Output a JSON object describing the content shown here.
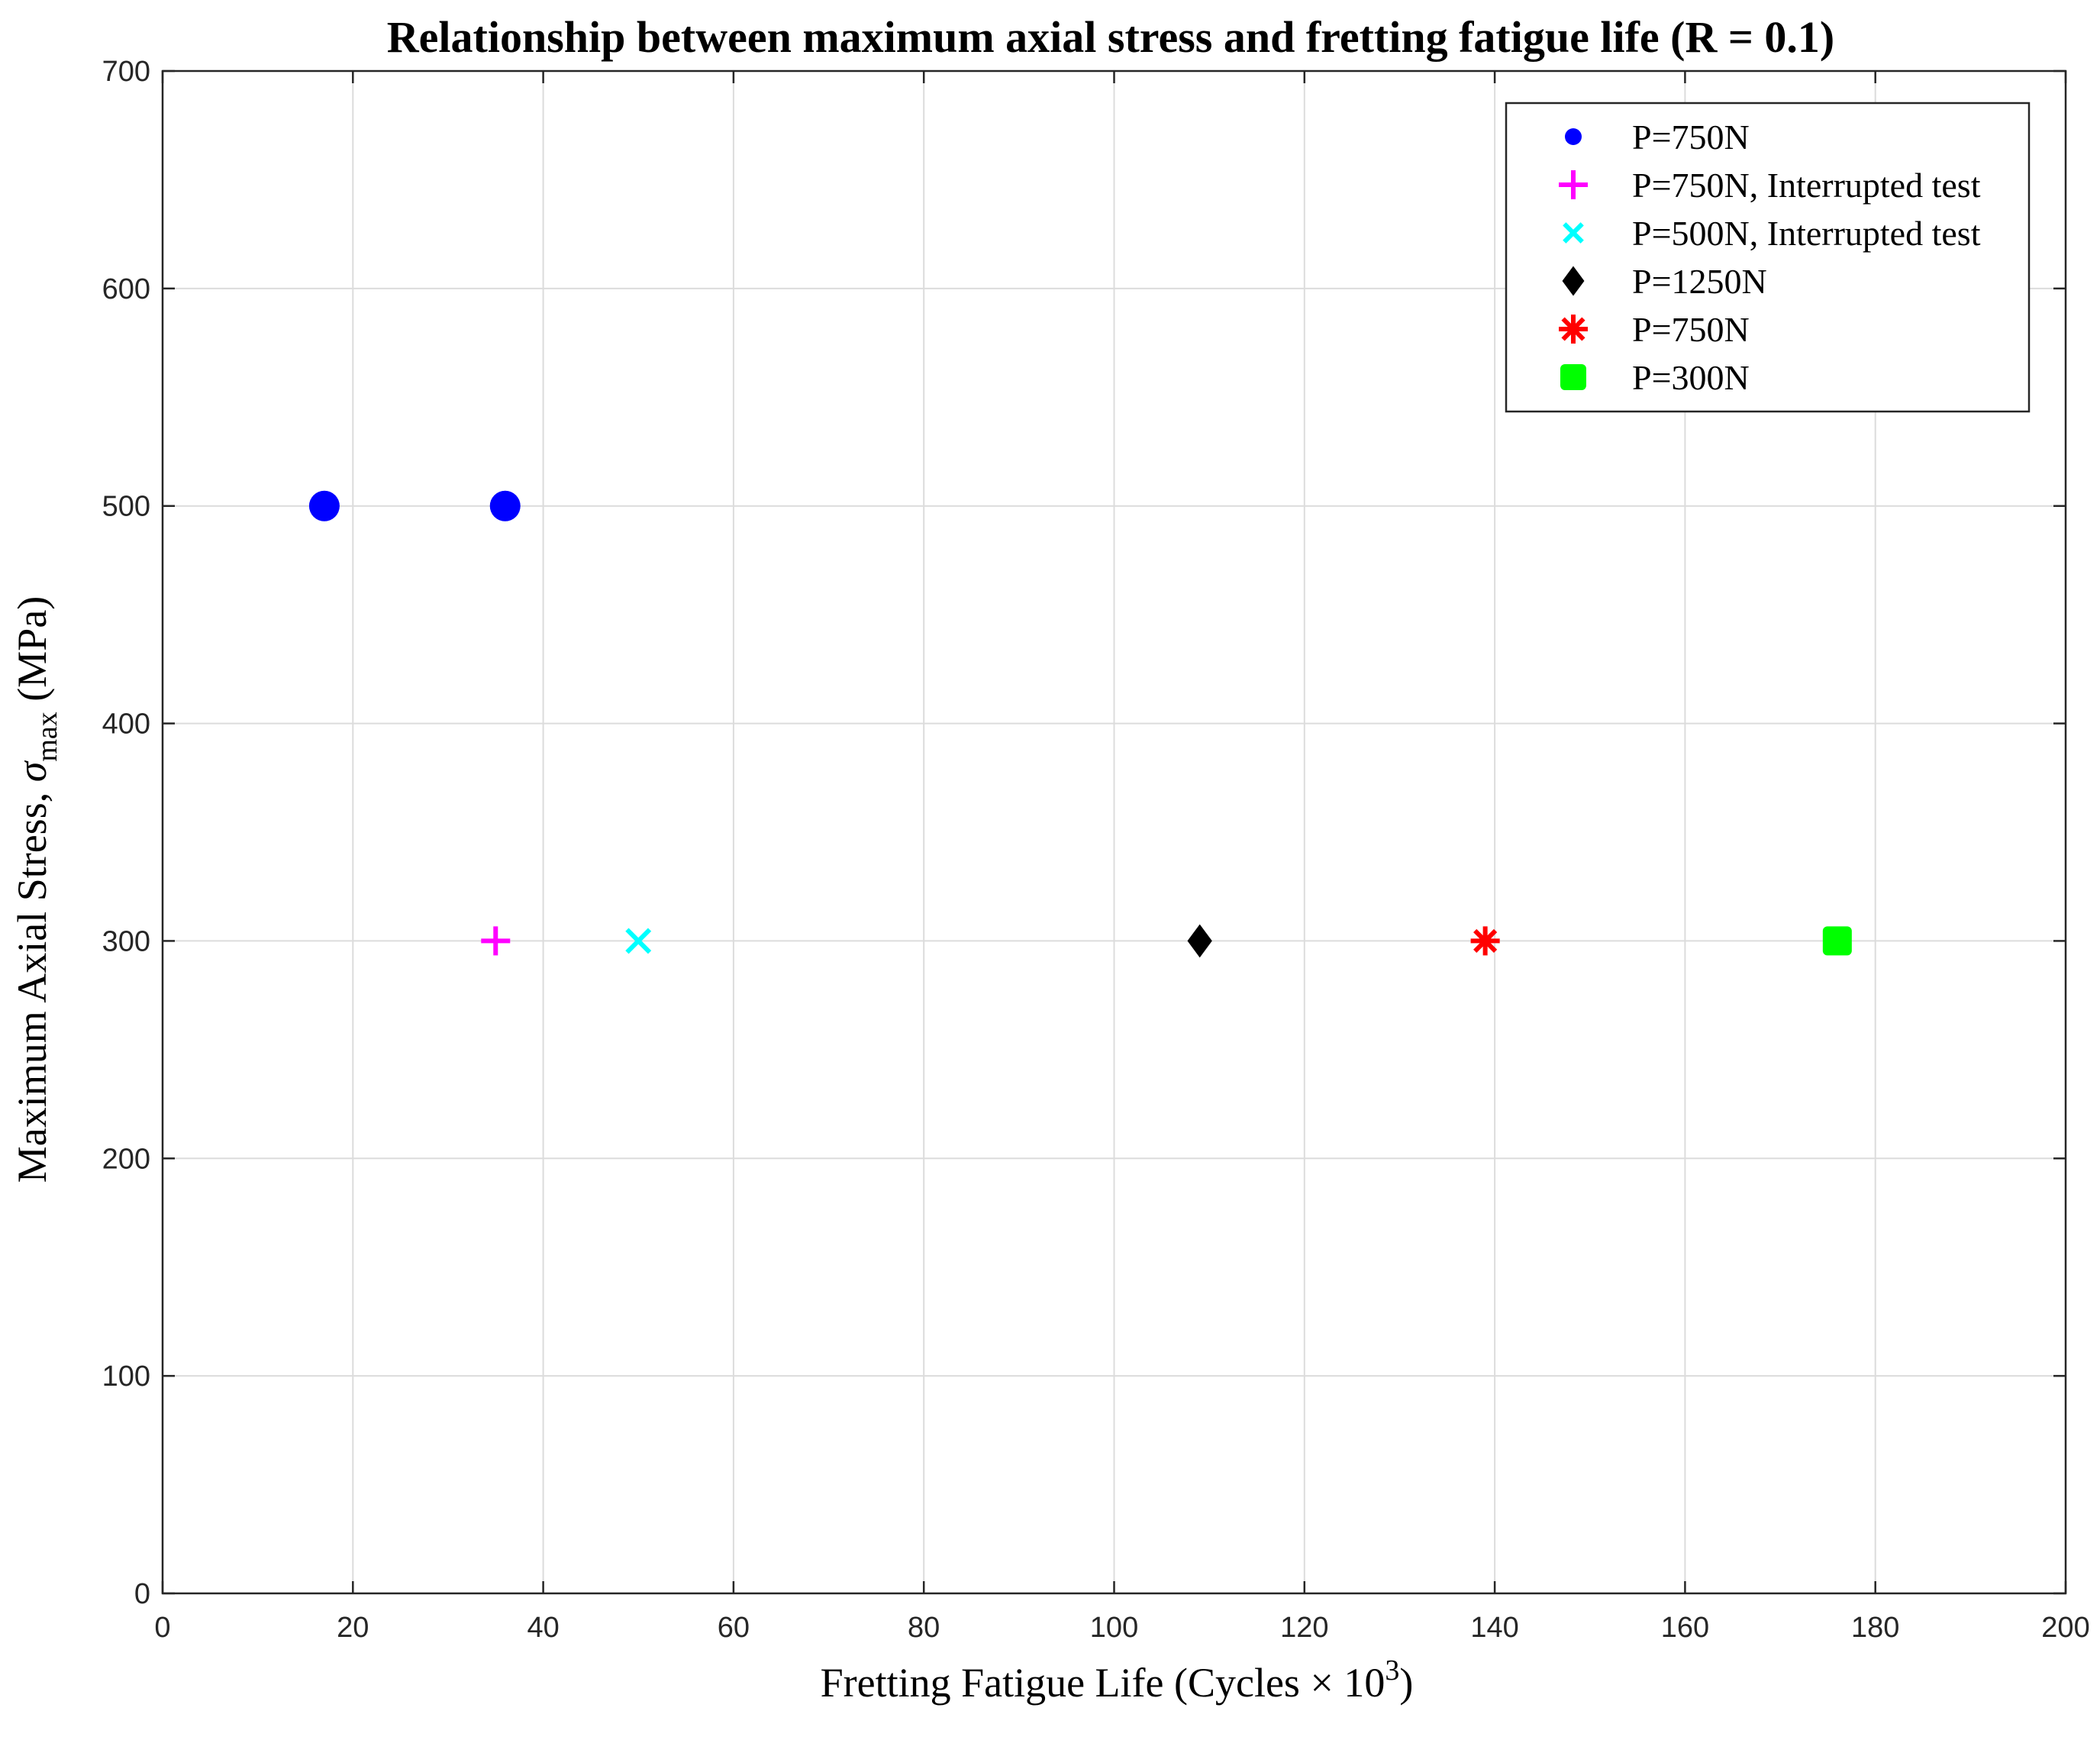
{
  "chart_data": {
    "type": "scatter",
    "title": "Relationship between maximum axial stress and fretting fatigue life (R = 0.1)",
    "xlabel_main": "Fretting Fatigue Life (Cycles × 10",
    "xlabel_sup": "3",
    "xlabel_end": ")",
    "ylabel_main": "Maximum Axial Stress, ",
    "ylabel_sigma": "σ",
    "ylabel_sub": "max",
    "ylabel_end": " (MPa)",
    "xlim": [
      0,
      200
    ],
    "ylim": [
      0,
      700
    ],
    "xticks": [
      0,
      20,
      40,
      60,
      80,
      100,
      120,
      140,
      160,
      180,
      200
    ],
    "yticks": [
      0,
      100,
      200,
      300,
      400,
      500,
      600,
      700
    ],
    "grid": true,
    "legend_position": "top-right",
    "series": [
      {
        "name": "P=750N",
        "marker": "circle",
        "color": "#0000ff",
        "points": [
          {
            "x": 17,
            "y": 500
          },
          {
            "x": 36,
            "y": 500
          }
        ]
      },
      {
        "name": "P=750N, Interrupted test",
        "marker": "plus",
        "color": "#ff00ff",
        "points": [
          {
            "x": 35,
            "y": 300
          }
        ]
      },
      {
        "name": "P=500N, Interrupted test",
        "marker": "cross",
        "color": "#00ffff",
        "points": [
          {
            "x": 50,
            "y": 300
          }
        ]
      },
      {
        "name": "P=1250N",
        "marker": "diamond",
        "color": "#000000",
        "points": [
          {
            "x": 109,
            "y": 300
          }
        ]
      },
      {
        "name": "P=750N",
        "marker": "asterisk",
        "color": "#ff0000",
        "points": [
          {
            "x": 139,
            "y": 300
          }
        ]
      },
      {
        "name": "P=300N",
        "marker": "square",
        "color": "#00ff00",
        "points": [
          {
            "x": 176,
            "y": 300
          }
        ]
      }
    ]
  }
}
